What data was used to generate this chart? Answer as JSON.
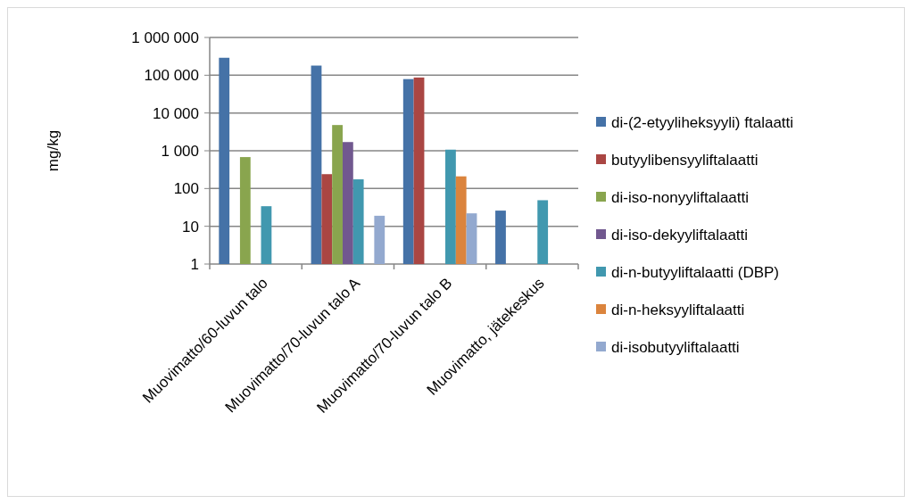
{
  "chart_data": {
    "type": "bar",
    "ylabel": "mg/kg",
    "log": "y",
    "grid": "y",
    "legend": "right",
    "categories": [
      "Muovimatto/60-luvun talo",
      "Muovimatto/70-luvun talo A",
      "Muovimatto/70-luvun talo B",
      "Muovimatto, jätekeskus"
    ],
    "ylim": [
      1,
      1000000
    ],
    "yticks": [
      1,
      10,
      100,
      {
        "value": 1000,
        "label": "1 000"
      },
      {
        "value": 10000,
        "label": "10 000"
      },
      {
        "value": 100000,
        "label": "100 000"
      },
      {
        "value": 1000000,
        "label": "1 000 000"
      }
    ],
    "series": [
      {
        "name": "di-(2-etyyliheksyyli) ftalaatti",
        "color": "#4572a7",
        "values": [
          290000,
          180000,
          79000,
          26
        ]
      },
      {
        "name": "butyylibensyyliftalaatti",
        "color": "#aa4643",
        "values": [
          null,
          240,
          87000,
          null
        ]
      },
      {
        "name": "di-iso-nonyyliftalaatti",
        "color": "#89a54e",
        "values": [
          680,
          4800,
          null,
          null
        ]
      },
      {
        "name": "di-iso-dekyyliftalaatti",
        "color": "#71588f",
        "values": [
          null,
          1700,
          null,
          null
        ]
      },
      {
        "name": "di-n-butyyliftalaatti (DBP)",
        "color": "#4198af",
        "values": [
          34,
          175,
          1070,
          49
        ]
      },
      {
        "name": "di-n-heksyyliftalaatti",
        "color": "#db843d",
        "values": [
          null,
          null,
          210,
          null
        ]
      },
      {
        "name": "di-isobutyyliftalaatti",
        "color": "#93a9cf",
        "values": [
          null,
          19,
          22,
          null
        ]
      }
    ]
  }
}
